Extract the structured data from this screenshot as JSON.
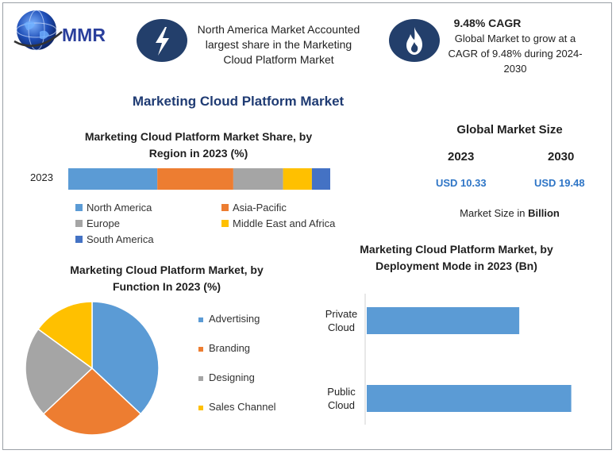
{
  "header": {
    "logo_text": "MMR",
    "callout_1": {
      "icon": "lightning-bolt-icon",
      "text": [
        "North America Market Accounted",
        "largest share in the Marketing",
        "Cloud Platform Market"
      ]
    },
    "callout_2": {
      "icon": "flame-icon",
      "title": "9.48% CAGR",
      "text": [
        "Global Market to grow at a",
        "CAGR of 9.48% during 2024-",
        "2030"
      ]
    }
  },
  "main_title": "Marketing Cloud Platform Market",
  "global_market_size": {
    "title": "Global Market Size",
    "year_1": "2023",
    "year_2": "2030",
    "value_1": "USD 10.33",
    "value_2": "USD 19.48",
    "note_prefix": "Market Size in ",
    "note_unit": "Billion"
  },
  "colors": {
    "blue": "#5b9bd5",
    "orange": "#ed7d31",
    "gray": "#a5a5a5",
    "yellow": "#ffc000",
    "darkblue": "#4472c4",
    "navy": "#233f6b"
  },
  "chart_data": [
    {
      "type": "bar",
      "orientation": "horizontal-stacked",
      "title": [
        "Marketing Cloud Platform Market Share, by",
        "Region in 2023 (%)"
      ],
      "categories": [
        "2023"
      ],
      "series": [
        {
          "name": "North America",
          "values": [
            34
          ],
          "color": "#5b9bd5"
        },
        {
          "name": "Asia-Pacific",
          "values": [
            29
          ],
          "color": "#ed7d31"
        },
        {
          "name": "Europe",
          "values": [
            19
          ],
          "color": "#a5a5a5"
        },
        {
          "name": "Middle East and Africa",
          "values": [
            11
          ],
          "color": "#ffc000"
        },
        {
          "name": "South America",
          "values": [
            7
          ],
          "color": "#4472c4"
        }
      ],
      "xlim": [
        0,
        100
      ],
      "legend_position": "bottom"
    },
    {
      "type": "pie",
      "title": [
        "Marketing Cloud Platform Market, by",
        "Function In 2023 (%)"
      ],
      "categories": [
        "Advertising",
        "Branding",
        "Designing",
        "Sales Channel"
      ],
      "values": [
        37,
        26,
        22,
        15
      ],
      "colors": [
        "#5b9bd5",
        "#ed7d31",
        "#a5a5a5",
        "#ffc000"
      ],
      "legend_position": "right"
    },
    {
      "type": "bar",
      "orientation": "horizontal",
      "title": [
        "Marketing Cloud Platform Market, by",
        "Deployment Mode in 2023 (Bn)"
      ],
      "categories": [
        [
          "Private",
          "Cloud"
        ],
        [
          "Public",
          "Cloud"
        ]
      ],
      "values": [
        4.4,
        5.9
      ],
      "xlim": [
        0,
        6
      ],
      "color": "#5b9bd5"
    }
  ]
}
